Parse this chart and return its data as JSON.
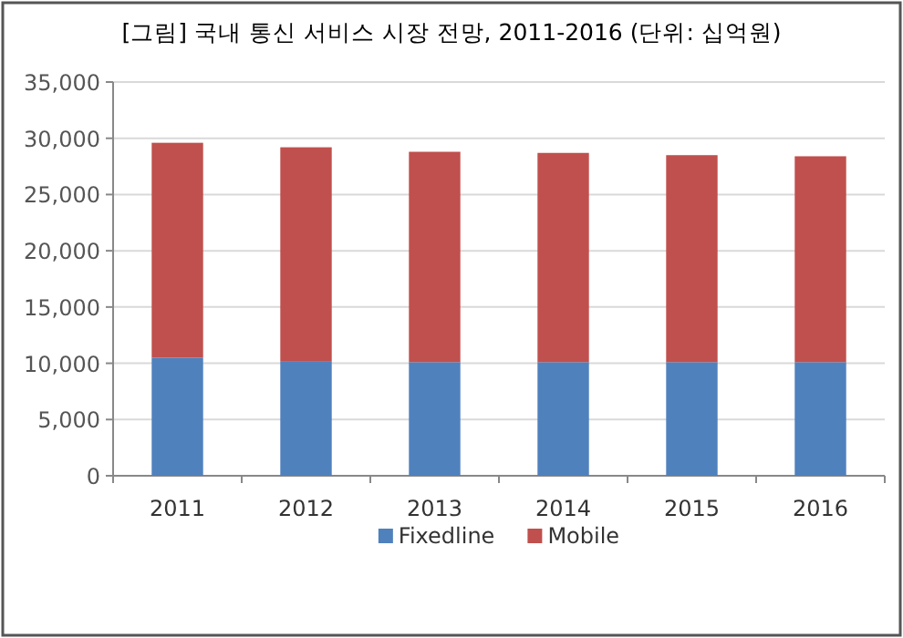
{
  "chart_data": {
    "type": "bar",
    "stacked": true,
    "title": "[그림] 국내 통신 서비스 시장 전망, 2011-2016 (단위: 십억원)",
    "categories": [
      "2011",
      "2012",
      "2013",
      "2014",
      "2015",
      "2016"
    ],
    "series": [
      {
        "name": "Fixedline",
        "color": "#4f81bd",
        "values": [
          10500,
          10200,
          10100,
          10100,
          10100,
          10100
        ]
      },
      {
        "name": "Mobile",
        "color": "#c0504d",
        "values": [
          19100,
          19000,
          18700,
          18600,
          18400,
          18300
        ]
      }
    ],
    "ylim": [
      0,
      35000
    ],
    "yticks": [
      {
        "value": 0,
        "label": "0"
      },
      {
        "value": 5000,
        "label": "5,000"
      },
      {
        "value": 10000,
        "label": "10,000"
      },
      {
        "value": 15000,
        "label": "15,000"
      },
      {
        "value": 20000,
        "label": "20,000"
      },
      {
        "value": 25000,
        "label": "25,000"
      },
      {
        "value": 30000,
        "label": "30,000"
      },
      {
        "value": 35000,
        "label": "35,000"
      }
    ],
    "grid": "y",
    "legend": "bottom"
  }
}
